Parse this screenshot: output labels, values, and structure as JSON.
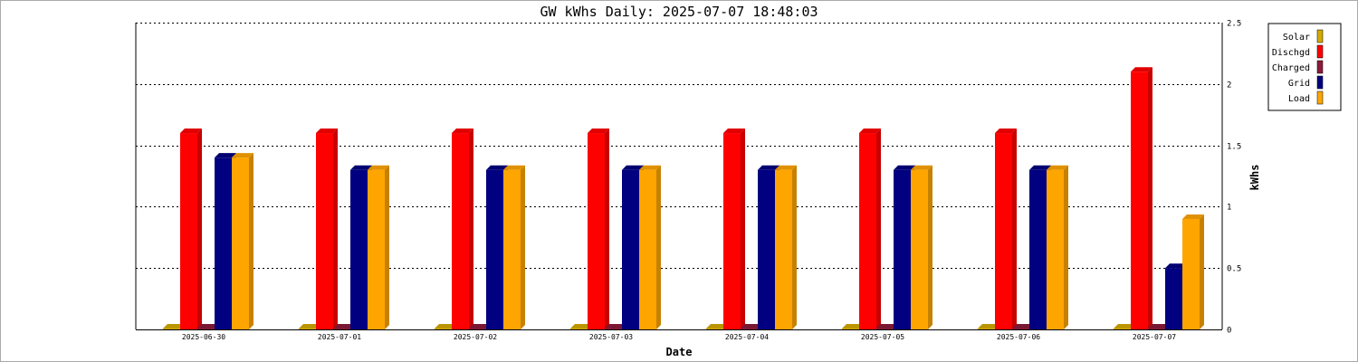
{
  "chart_data": {
    "type": "bar",
    "title": "GW kWhs Daily: 2025-07-07 18:48:03",
    "xlabel": "Date",
    "ylabel": "kWhs",
    "ylim": [
      0,
      2.5
    ],
    "yticks": [
      "0",
      "0.5",
      "1",
      "1.5",
      "2",
      "2.5"
    ],
    "grid": true,
    "legend_position": "top-right",
    "categories": [
      "2025-06-30",
      "2025-07-01",
      "2025-07-02",
      "2025-07-03",
      "2025-07-04",
      "2025-07-05",
      "2025-07-06",
      "2025-07-07"
    ],
    "series": [
      {
        "name": "Solar",
        "color": "#d4aa00",
        "values": [
          0,
          0,
          0,
          0,
          0,
          0,
          0,
          0
        ]
      },
      {
        "name": "Dischgd",
        "color": "#ff0000",
        "values": [
          1.6,
          1.6,
          1.6,
          1.6,
          1.6,
          1.6,
          1.6,
          2.1
        ]
      },
      {
        "name": "Charged",
        "color": "#8b1a3a",
        "values": [
          0,
          0,
          0,
          0,
          0,
          0,
          0,
          0
        ]
      },
      {
        "name": "Grid",
        "color": "#000080",
        "values": [
          1.4,
          1.3,
          1.3,
          1.3,
          1.3,
          1.3,
          1.3,
          0.5
        ]
      },
      {
        "name": "Load",
        "color": "#ffa500",
        "values": [
          1.4,
          1.3,
          1.3,
          1.3,
          1.3,
          1.3,
          1.3,
          0.9
        ]
      }
    ]
  }
}
